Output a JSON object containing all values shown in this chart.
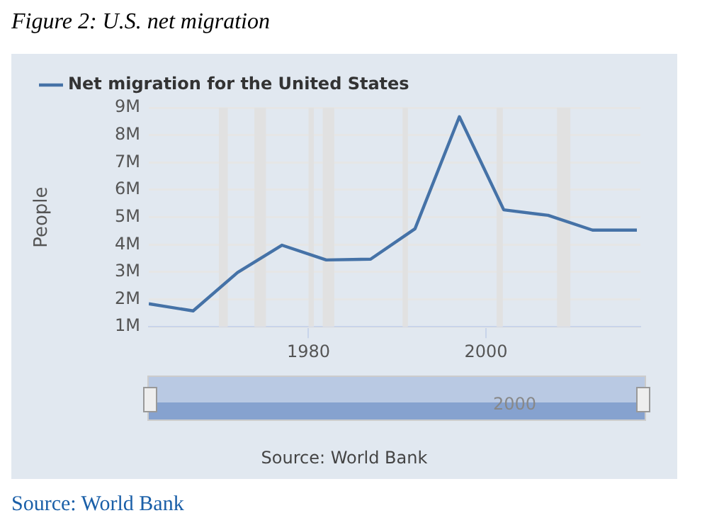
{
  "chart_data": {
    "type": "line",
    "title": "Figure 2: U.S. net migration",
    "ylabel": "People",
    "x": [
      1962,
      1967,
      1972,
      1977,
      1982,
      1987,
      1992,
      1997,
      2002,
      2007,
      2012,
      2017
    ],
    "series": [
      {
        "name": "Net migration for the United States",
        "color": "#4572a7",
        "values": [
          1.84,
          1.58,
          2.98,
          3.98,
          3.44,
          3.47,
          4.58,
          8.67,
          5.27,
          5.07,
          4.53,
          4.53
        ]
      }
    ],
    "xlim": [
      1962,
      2017.4
    ],
    "xticks": [
      1980,
      2000
    ],
    "ylim": [
      1,
      9
    ],
    "yticks": [
      {
        "value": 1,
        "label": "1M"
      },
      {
        "value": 2,
        "label": "2M"
      },
      {
        "value": 3,
        "label": "3M"
      },
      {
        "value": 4,
        "label": "4M"
      },
      {
        "value": 5,
        "label": "5M"
      },
      {
        "value": 6,
        "label": "6M"
      },
      {
        "value": 7,
        "label": "7M"
      },
      {
        "value": 8,
        "label": "8M"
      },
      {
        "value": 9,
        "label": "9M"
      }
    ],
    "bands": [
      {
        "axis": "x",
        "from": 1969.9,
        "to": 1970.9,
        "color": "#e1e1e1"
      },
      {
        "axis": "x",
        "from": 1973.9,
        "to": 1975.2,
        "color": "#e1e1e1"
      },
      {
        "axis": "x",
        "from": 1980.0,
        "to": 1980.6,
        "color": "#e1e1e1"
      },
      {
        "axis": "x",
        "from": 1981.6,
        "to": 1982.9,
        "color": "#e1e1e1"
      },
      {
        "axis": "x",
        "from": 1990.6,
        "to": 1991.2,
        "color": "#e1e1e1"
      },
      {
        "axis": "x",
        "from": 2001.2,
        "to": 2001.9,
        "color": "#e1e1e1"
      },
      {
        "axis": "x",
        "from": 2008.0,
        "to": 2009.5,
        "color": "#e1e1e1"
      }
    ],
    "annotations": [
      "2000",
      "Source: World Bank",
      "Source: World Bank"
    ],
    "grid": "y",
    "legend": "top left",
    "marker": "none",
    "line_style": "solid"
  }
}
